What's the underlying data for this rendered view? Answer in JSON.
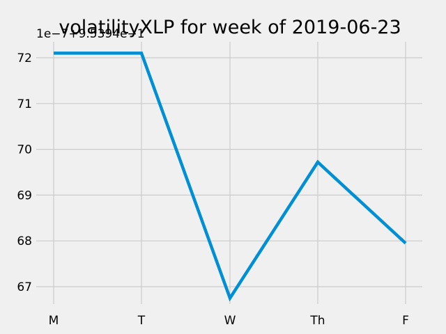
{
  "chart_data": {
    "type": "line",
    "title": "volatilityXLP for week of 2019-06-23",
    "axis_offset_label": "1e−7+9.5394e−1",
    "xlabel": "",
    "ylabel": "",
    "categories": [
      "M",
      "T",
      "W",
      "Th",
      "F"
    ],
    "series": [
      {
        "values": [
          72.1,
          72.1,
          66.75,
          69.72,
          67.95
        ]
      }
    ],
    "yticks": [
      67,
      68,
      69,
      70,
      71,
      72
    ],
    "ylim": [
      66.5,
      72.6
    ],
    "grid": true,
    "legend": "none",
    "line_color": "#008fd5",
    "grid_color": "#cbcbcb",
    "background_color": "#f0f0f0"
  }
}
